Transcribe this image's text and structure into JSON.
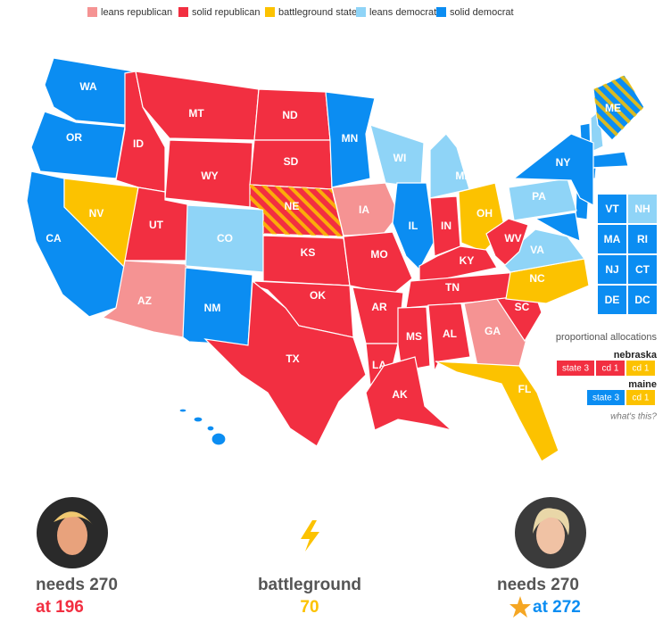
{
  "legend": [
    {
      "label": "leans republican",
      "color": "#f59393"
    },
    {
      "label": "solid republican",
      "color": "#f22f41"
    },
    {
      "label": "battleground state",
      "color": "#fcc200"
    },
    {
      "label": "leans democrat",
      "color": "#8fd4f7"
    },
    {
      "label": "solid democrat",
      "color": "#0b8df2"
    }
  ],
  "states": [
    {
      "label": "WA",
      "status": "solid democrat"
    },
    {
      "label": "OR",
      "status": "solid democrat"
    },
    {
      "label": "CA",
      "status": "solid democrat"
    },
    {
      "label": "ID",
      "status": "solid republican"
    },
    {
      "label": "NV",
      "status": "battleground state"
    },
    {
      "label": "MT",
      "status": "solid republican"
    },
    {
      "label": "WY",
      "status": "solid republican"
    },
    {
      "label": "UT",
      "status": "solid republican"
    },
    {
      "label": "AZ",
      "status": "leans republican"
    },
    {
      "label": "CO",
      "status": "leans democrat"
    },
    {
      "label": "NM",
      "status": "solid democrat"
    },
    {
      "label": "ND",
      "status": "solid republican"
    },
    {
      "label": "SD",
      "status": "solid republican"
    },
    {
      "label": "NE",
      "status": "solid republican",
      "split": true
    },
    {
      "label": "KS",
      "status": "solid republican"
    },
    {
      "label": "OK",
      "status": "solid republican"
    },
    {
      "label": "TX",
      "status": "solid republican"
    },
    {
      "label": "MN",
      "status": "solid democrat"
    },
    {
      "label": "IA",
      "status": "leans republican"
    },
    {
      "label": "MO",
      "status": "solid republican"
    },
    {
      "label": "AR",
      "status": "solid republican"
    },
    {
      "label": "LA",
      "status": "solid republican"
    },
    {
      "label": "WI",
      "status": "leans democrat"
    },
    {
      "label": "IL",
      "status": "solid democrat"
    },
    {
      "label": "MI",
      "status": "leans democrat"
    },
    {
      "label": "IN",
      "status": "solid republican"
    },
    {
      "label": "OH",
      "status": "battleground state"
    },
    {
      "label": "KY",
      "status": "solid republican"
    },
    {
      "label": "TN",
      "status": "solid republican"
    },
    {
      "label": "MS",
      "status": "solid republican"
    },
    {
      "label": "AL",
      "status": "solid republican"
    },
    {
      "label": "GA",
      "status": "leans republican"
    },
    {
      "label": "FL",
      "status": "battleground state"
    },
    {
      "label": "SC",
      "status": "solid republican"
    },
    {
      "label": "NC",
      "status": "battleground state"
    },
    {
      "label": "VA",
      "status": "leans democrat"
    },
    {
      "label": "WV",
      "status": "solid republican"
    },
    {
      "label": "PA",
      "status": "leans democrat"
    },
    {
      "label": "NY",
      "status": "solid democrat"
    },
    {
      "label": "ME",
      "status": "solid democrat",
      "split": true
    },
    {
      "label": "AK",
      "status": "solid republican"
    }
  ],
  "small_states": [
    {
      "label": "VT",
      "status": "solid democrat"
    },
    {
      "label": "NH",
      "status": "leans democrat"
    },
    {
      "label": "MA",
      "status": "solid democrat"
    },
    {
      "label": "RI",
      "status": "solid democrat"
    },
    {
      "label": "NJ",
      "status": "solid democrat"
    },
    {
      "label": "CT",
      "status": "solid democrat"
    },
    {
      "label": "DE",
      "status": "solid democrat"
    },
    {
      "label": "DC",
      "status": "solid democrat"
    }
  ],
  "proportional": {
    "title": "proportional allocations",
    "groups": [
      {
        "name": "nebraska",
        "parts": [
          {
            "label": "state 3",
            "status": "solid republican"
          },
          {
            "label": "cd 1",
            "status": "solid republican"
          },
          {
            "label": "cd 1",
            "status": "battleground state"
          }
        ]
      },
      {
        "name": "maine",
        "parts": [
          {
            "label": "state 3",
            "status": "solid democrat"
          },
          {
            "label": "cd 1",
            "status": "battleground state"
          }
        ]
      }
    ],
    "link": "what's this?"
  },
  "scoreboard": {
    "left": {
      "needs": "needs 270",
      "at": "at 196"
    },
    "middle": {
      "label": "battleground",
      "value": "70"
    },
    "right": {
      "needs": "needs 270",
      "at": "at 272"
    }
  }
}
